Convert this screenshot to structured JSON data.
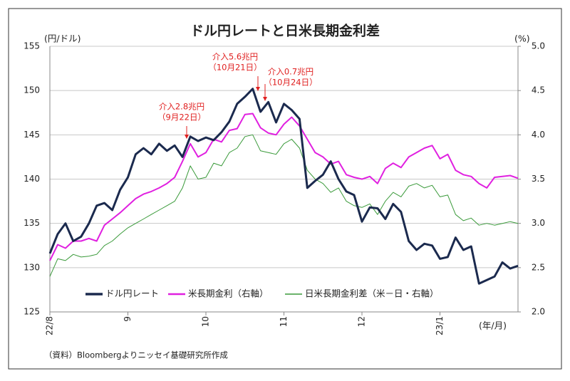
{
  "chart_data": {
    "type": "line",
    "title": "ドル円レートと日米長期金利差",
    "y_label": "(円/ドル)",
    "y2_label": "(%)",
    "x_label": "(年/月)",
    "source": "（資料）Bloombergよりニッセイ基礎研究所作成",
    "annotations": [
      [
        "介入2.8兆円",
        "（9月22日）"
      ],
      [
        "介入5.6兆円",
        "（10月21日）"
      ],
      [
        "介入0.7兆円",
        "（10月24日）"
      ]
    ],
    "annotation_color": "#e02020",
    "categories": [
      "22/8",
      null,
      null,
      null,
      null,
      null,
      null,
      null,
      null,
      null,
      "9",
      null,
      null,
      null,
      null,
      null,
      null,
      null,
      null,
      null,
      "10",
      null,
      null,
      null,
      null,
      null,
      null,
      null,
      null,
      null,
      "11",
      null,
      null,
      null,
      null,
      null,
      null,
      null,
      null,
      null,
      "12",
      null,
      null,
      null,
      null,
      null,
      null,
      null,
      null,
      null,
      "23/1",
      null,
      null,
      null,
      null,
      null,
      null,
      null,
      null,
      null,
      null
    ],
    "ylim": [
      125,
      155
    ],
    "yticks": [
      125,
      130,
      135,
      140,
      145,
      150,
      155
    ],
    "y2lim": [
      2,
      5
    ],
    "y2ticks": [
      {
        "value": 2,
        "label": "2.0"
      },
      2.5,
      {
        "value": 3,
        "label": "3.0"
      },
      3.5,
      {
        "value": 4,
        "label": "4.0"
      },
      4.5,
      {
        "value": 5,
        "label": "5.0"
      }
    ],
    "grid": true,
    "legend": "bottom-left",
    "series": [
      {
        "name": "ドル円レート",
        "color": "#1b2a4e",
        "width": 3,
        "values": [
          131.6,
          133.8,
          135,
          133,
          133.5,
          135,
          137,
          137.3,
          136.5,
          138.8,
          140.2,
          142.8,
          143.5,
          142.8,
          144.0,
          143.2,
          143.8,
          142.5,
          144.8,
          144.3,
          144.7,
          144.4,
          145.3,
          146.5,
          148.5,
          149.3,
          150.2,
          147.6,
          148.7,
          146.4,
          148.5,
          147.8,
          146.8,
          139.0,
          139.8,
          140.5,
          142.0,
          140.0,
          138.6,
          138.2,
          135.2,
          136.8,
          136.7,
          135.5,
          137.2,
          136.3,
          133.0,
          132.0,
          132.7,
          132.5,
          131.0,
          131.2,
          133.4,
          132.0,
          132.4,
          128.2,
          128.6,
          129.0,
          130.6,
          129.9,
          130.2
        ]
      },
      {
        "name": "米長期金利（右軸）",
        "color": "#e020e0",
        "width": 2,
        "axis": "y2",
        "values": [
          2.58,
          2.76,
          2.72,
          2.8,
          2.8,
          2.83,
          2.8,
          2.98,
          3.05,
          3.12,
          3.2,
          3.28,
          3.33,
          3.36,
          3.4,
          3.45,
          3.52,
          3.7,
          3.9,
          3.75,
          3.8,
          3.95,
          3.92,
          4.05,
          4.07,
          4.23,
          4.24,
          4.08,
          4.02,
          4.0,
          4.12,
          4.2,
          4.1,
          3.95,
          3.8,
          3.75,
          3.67,
          3.7,
          3.55,
          3.52,
          3.5,
          3.53,
          3.45,
          3.62,
          3.68,
          3.63,
          3.75,
          3.8,
          3.85,
          3.88,
          3.73,
          3.78,
          3.6,
          3.55,
          3.53,
          3.45,
          3.4,
          3.52,
          3.53,
          3.54,
          3.51
        ]
      },
      {
        "name": "日米長期金利差（米－日・右軸）",
        "color": "#3a9a3a",
        "width": 1,
        "axis": "y2",
        "values": [
          2.4,
          2.6,
          2.58,
          2.65,
          2.62,
          2.63,
          2.65,
          2.75,
          2.8,
          2.88,
          2.95,
          3.0,
          3.05,
          3.1,
          3.15,
          3.2,
          3.25,
          3.4,
          3.65,
          3.5,
          3.52,
          3.68,
          3.65,
          3.8,
          3.85,
          3.98,
          4.0,
          3.82,
          3.8,
          3.78,
          3.9,
          3.95,
          3.85,
          3.6,
          3.5,
          3.45,
          3.35,
          3.4,
          3.25,
          3.2,
          3.18,
          3.22,
          3.1,
          3.25,
          3.35,
          3.3,
          3.42,
          3.45,
          3.4,
          3.43,
          3.3,
          3.32,
          3.1,
          3.03,
          3.06,
          2.98,
          3.0,
          2.98,
          3.0,
          3.02,
          3.0
        ]
      }
    ]
  }
}
